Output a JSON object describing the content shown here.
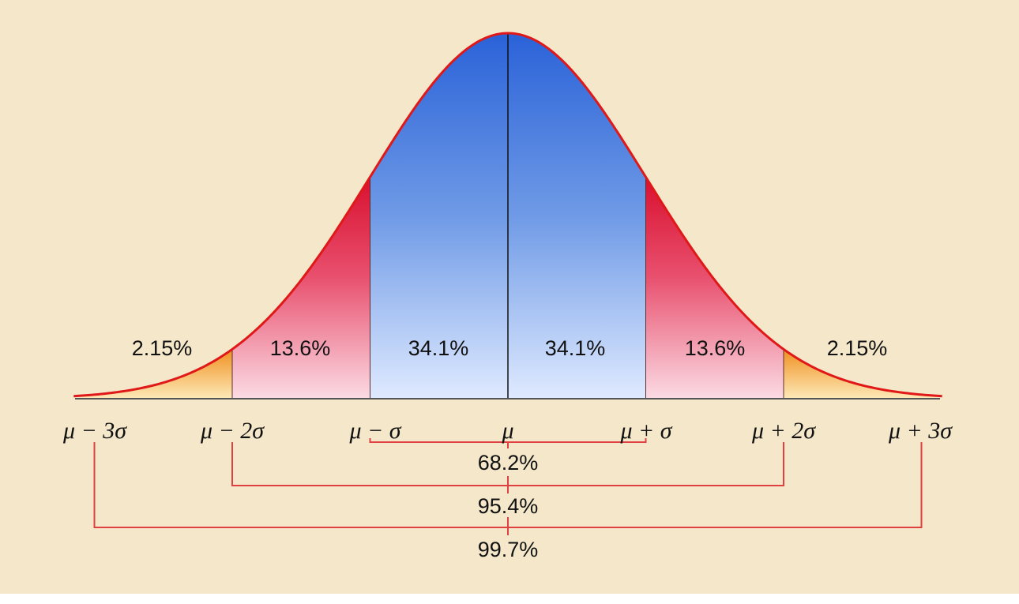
{
  "regions": [
    {
      "label": "2.15%"
    },
    {
      "label": "13.6%"
    },
    {
      "label": "34.1%"
    },
    {
      "label": "34.1%"
    },
    {
      "label": "13.6%"
    },
    {
      "label": "2.15%"
    }
  ],
  "bounds": [
    "μ − 3σ",
    "μ − 2σ",
    "μ − σ",
    "μ",
    "μ + σ",
    "μ + 2σ",
    "μ + 3σ"
  ],
  "intervals": [
    {
      "label": "68.2%"
    },
    {
      "label": "95.4%"
    },
    {
      "label": "99.7%"
    }
  ]
}
